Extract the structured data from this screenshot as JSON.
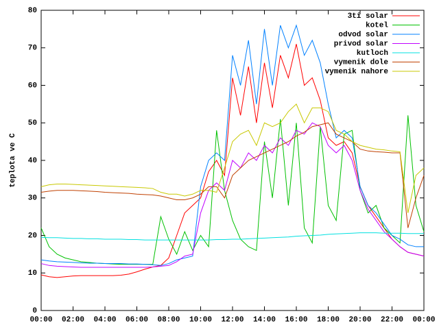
{
  "chart_data": {
    "type": "line",
    "ylabel": "teplota ve C",
    "x": [
      0,
      0.5,
      1,
      1.5,
      2,
      2.5,
      3,
      3.5,
      4,
      4.5,
      5,
      5.5,
      6,
      6.5,
      7,
      7.5,
      8,
      8.5,
      9,
      9.5,
      10,
      10.5,
      11,
      11.5,
      12,
      12.5,
      13,
      13.5,
      14,
      14.5,
      15,
      15.5,
      16,
      16.5,
      17,
      17.5,
      18,
      18.5,
      19,
      19.5,
      20,
      20.5,
      21,
      21.5,
      22,
      22.5,
      23,
      23.5,
      24
    ],
    "xlim": [
      0,
      24
    ],
    "xticks": [
      {
        "value": 0,
        "label": "00:00"
      },
      {
        "value": 2,
        "label": "02:00"
      },
      {
        "value": 4,
        "label": "04:00"
      },
      {
        "value": 6,
        "label": "06:00"
      },
      {
        "value": 8,
        "label": "08:00"
      },
      {
        "value": 10,
        "label": "10:00"
      },
      {
        "value": 12,
        "label": "12:00"
      },
      {
        "value": 14,
        "label": "14:00"
      },
      {
        "value": 16,
        "label": "16:00"
      },
      {
        "value": 18,
        "label": "18:00"
      },
      {
        "value": 20,
        "label": "20:00"
      },
      {
        "value": 22,
        "label": "22:00"
      },
      {
        "value": 24,
        "label": "00:00"
      }
    ],
    "ylim": [
      0,
      80
    ],
    "yticks": [
      0,
      10,
      20,
      30,
      40,
      50,
      60,
      70,
      80
    ],
    "grid": false,
    "legend": "top-right",
    "series": [
      {
        "name": "3ti solar",
        "color": "#ff0000",
        "values": [
          9.5,
          9,
          8.8,
          9,
          9.2,
          9.3,
          9.3,
          9.3,
          9.3,
          9.3,
          9.4,
          9.7,
          10.3,
          11,
          11.6,
          12,
          14,
          20,
          26,
          28,
          30,
          37,
          40,
          36,
          62,
          52,
          65,
          50,
          66,
          54,
          68,
          62,
          71,
          60,
          62,
          56,
          46,
          44,
          45,
          42,
          33,
          28,
          25,
          22,
          19,
          17,
          15.5,
          15,
          14.5
        ]
      },
      {
        "name": "kotel",
        "color": "#00c000",
        "values": [
          22,
          17,
          15,
          14,
          13.5,
          13,
          12.8,
          12.6,
          12.5,
          12.4,
          12.3,
          12.3,
          12.3,
          12.3,
          12.3,
          25,
          19,
          15,
          21,
          16,
          20,
          17,
          48,
          32,
          24,
          19,
          17,
          16,
          45,
          30,
          51,
          28,
          50,
          22,
          18,
          49,
          28,
          24,
          47,
          48,
          32,
          26,
          28,
          22,
          20,
          18,
          52,
          28,
          21
        ]
      },
      {
        "name": "odvod solar",
        "color": "#0080ff",
        "values": [
          13.5,
          13.2,
          13,
          12.9,
          12.8,
          12.7,
          12.6,
          12.6,
          12.5,
          12.5,
          12.5,
          12.4,
          12.4,
          12.3,
          12.2,
          12,
          12.5,
          13.5,
          14,
          14.5,
          33,
          40,
          42,
          40,
          68,
          60,
          72,
          55,
          75,
          60,
          76,
          70,
          76,
          68,
          72,
          66,
          55,
          46,
          48,
          46,
          33,
          28,
          26,
          23,
          20,
          19,
          17.5,
          17,
          17
        ]
      },
      {
        "name": "privod solar",
        "color": "#c000ff",
        "values": [
          12.5,
          12,
          11.8,
          11.7,
          11.6,
          11.5,
          11.5,
          11.5,
          11.5,
          11.5,
          11.5,
          11.5,
          11.5,
          11.5,
          11.6,
          11.8,
          12,
          13,
          14.5,
          15,
          26,
          32,
          34,
          32,
          40,
          38,
          42,
          40,
          44,
          42,
          46,
          44,
          48,
          47,
          50,
          49,
          44,
          42,
          44,
          40,
          32,
          27,
          24,
          21,
          19,
          17,
          15.5,
          15,
          14.5
        ]
      },
      {
        "name": "kutloch",
        "color": "#00e0e0",
        "values": [
          19.5,
          19.4,
          19.4,
          19.3,
          19.2,
          19.2,
          19.1,
          19.1,
          19,
          19,
          19,
          18.9,
          18.9,
          18.8,
          18.8,
          18.8,
          18.8,
          18.8,
          18.8,
          18.8,
          18.8,
          18.8,
          18.9,
          18.9,
          19,
          19,
          19.1,
          19.2,
          19.3,
          19.4,
          19.5,
          19.6,
          19.8,
          19.9,
          20,
          20.1,
          20.3,
          20.4,
          20.5,
          20.6,
          20.7,
          20.7,
          20.7,
          20.6,
          20.6,
          20.6,
          20.5,
          20.5,
          20.5
        ]
      },
      {
        "name": "vymenik dole",
        "color": "#c04000",
        "values": [
          31.5,
          31.8,
          32,
          32,
          32,
          31.9,
          31.8,
          31.7,
          31.5,
          31.4,
          31.3,
          31.2,
          31,
          30.9,
          30.8,
          30.5,
          30,
          29.5,
          29.5,
          30,
          31,
          33,
          33,
          30,
          36,
          38,
          40,
          41,
          42,
          43,
          44,
          45,
          46.5,
          47.5,
          49,
          49.5,
          50,
          47,
          46,
          45,
          43,
          42.5,
          42.3,
          42.2,
          42,
          42,
          22,
          30,
          36
        ]
      },
      {
        "name": "vymenik nahore",
        "color": "#c8c800",
        "values": [
          33,
          33.5,
          33.7,
          33.7,
          33.6,
          33.5,
          33.4,
          33.3,
          33.2,
          33.1,
          33,
          32.9,
          32.8,
          32.7,
          32.5,
          31.5,
          31,
          31,
          30.5,
          31,
          32,
          32,
          31.5,
          38,
          45,
          47,
          48,
          44,
          50,
          49,
          50,
          53,
          55,
          50,
          54,
          54,
          53,
          48,
          47,
          45,
          44,
          43.5,
          43,
          42.8,
          42.5,
          42.3,
          26,
          36,
          38
        ]
      }
    ]
  }
}
